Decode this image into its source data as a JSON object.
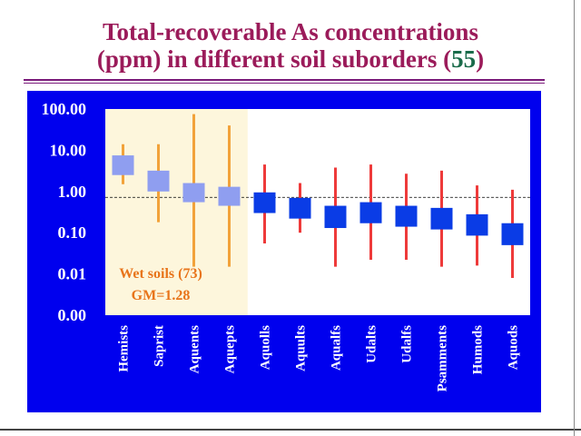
{
  "slide": {
    "title_line1": "Total-recoverable As concentrations",
    "title_line2_prefix": "(ppm) in different soil suborders (",
    "title_number": "55",
    "title_line2_suffix": ")"
  },
  "chart_data": {
    "type": "box",
    "title": "Total-recoverable As concentrations (ppm) in different soil suborders (55)",
    "xlabel": "",
    "ylabel": "",
    "y_scale": "log",
    "ylim": [
      0.001,
      100
    ],
    "y_tick_labels": [
      "100.00",
      "10.00",
      "1.00",
      "0.10",
      "0.01",
      "0.00"
    ],
    "y_tick_values": [
      100,
      10,
      1,
      0.1,
      0.01,
      0.001
    ],
    "reference_line": 0.72,
    "categories": [
      "Hemists",
      "Saprist",
      "Aquents",
      "Aquepts",
      "Aquolls",
      "Aquults",
      "Aqualfs",
      "Udalts",
      "Udalfs",
      "Psamments",
      "Humods",
      "Aquods"
    ],
    "series": [
      {
        "group": "wet",
        "values": [
          {
            "category": "Hemists",
            "min": 1.5,
            "q1": 2.5,
            "q3": 7.5,
            "max": 14
          },
          {
            "category": "Saprist",
            "min": 0.18,
            "q1": 1.0,
            "q3": 3.2,
            "max": 14
          },
          {
            "category": "Aquents",
            "min": 0.015,
            "q1": 0.55,
            "q3": 1.6,
            "max": 75
          },
          {
            "category": "Aquepts",
            "min": 0.015,
            "q1": 0.45,
            "q3": 1.3,
            "max": 40
          }
        ]
      },
      {
        "group": "other",
        "values": [
          {
            "category": "Aquolls",
            "min": 0.055,
            "q1": 0.3,
            "q3": 0.95,
            "max": 4.5
          },
          {
            "category": "Aquults",
            "min": 0.1,
            "q1": 0.22,
            "q3": 0.7,
            "max": 1.6
          },
          {
            "category": "Aqualfs",
            "min": 0.015,
            "q1": 0.13,
            "q3": 0.45,
            "max": 3.8
          },
          {
            "category": "Udalts",
            "min": 0.022,
            "q1": 0.17,
            "q3": 0.55,
            "max": 4.5
          },
          {
            "category": "Udalfs",
            "min": 0.022,
            "q1": 0.14,
            "q3": 0.45,
            "max": 2.7
          },
          {
            "category": "Psamments",
            "min": 0.015,
            "q1": 0.12,
            "q3": 0.4,
            "max": 3.2
          },
          {
            "category": "Humods",
            "min": 0.016,
            "q1": 0.085,
            "q3": 0.28,
            "max": 1.4
          },
          {
            "category": "Aquods",
            "min": 0.008,
            "q1": 0.05,
            "q3": 0.17,
            "max": 1.1
          }
        ]
      }
    ],
    "annotation": {
      "line1": "Wet soils (73)",
      "line2": "GM=1.28"
    },
    "colors": {
      "frame": "#0000ee",
      "plot_bg": "#ffffff",
      "wet_region": "#fdf6dc",
      "wet_box": "#8f9ef0",
      "wet_whisker": "#f2a23a",
      "box": "#0a3ce6",
      "whisker": "#ee3a3a",
      "reference_line": "#000000",
      "annotation": "#e8741a"
    }
  }
}
